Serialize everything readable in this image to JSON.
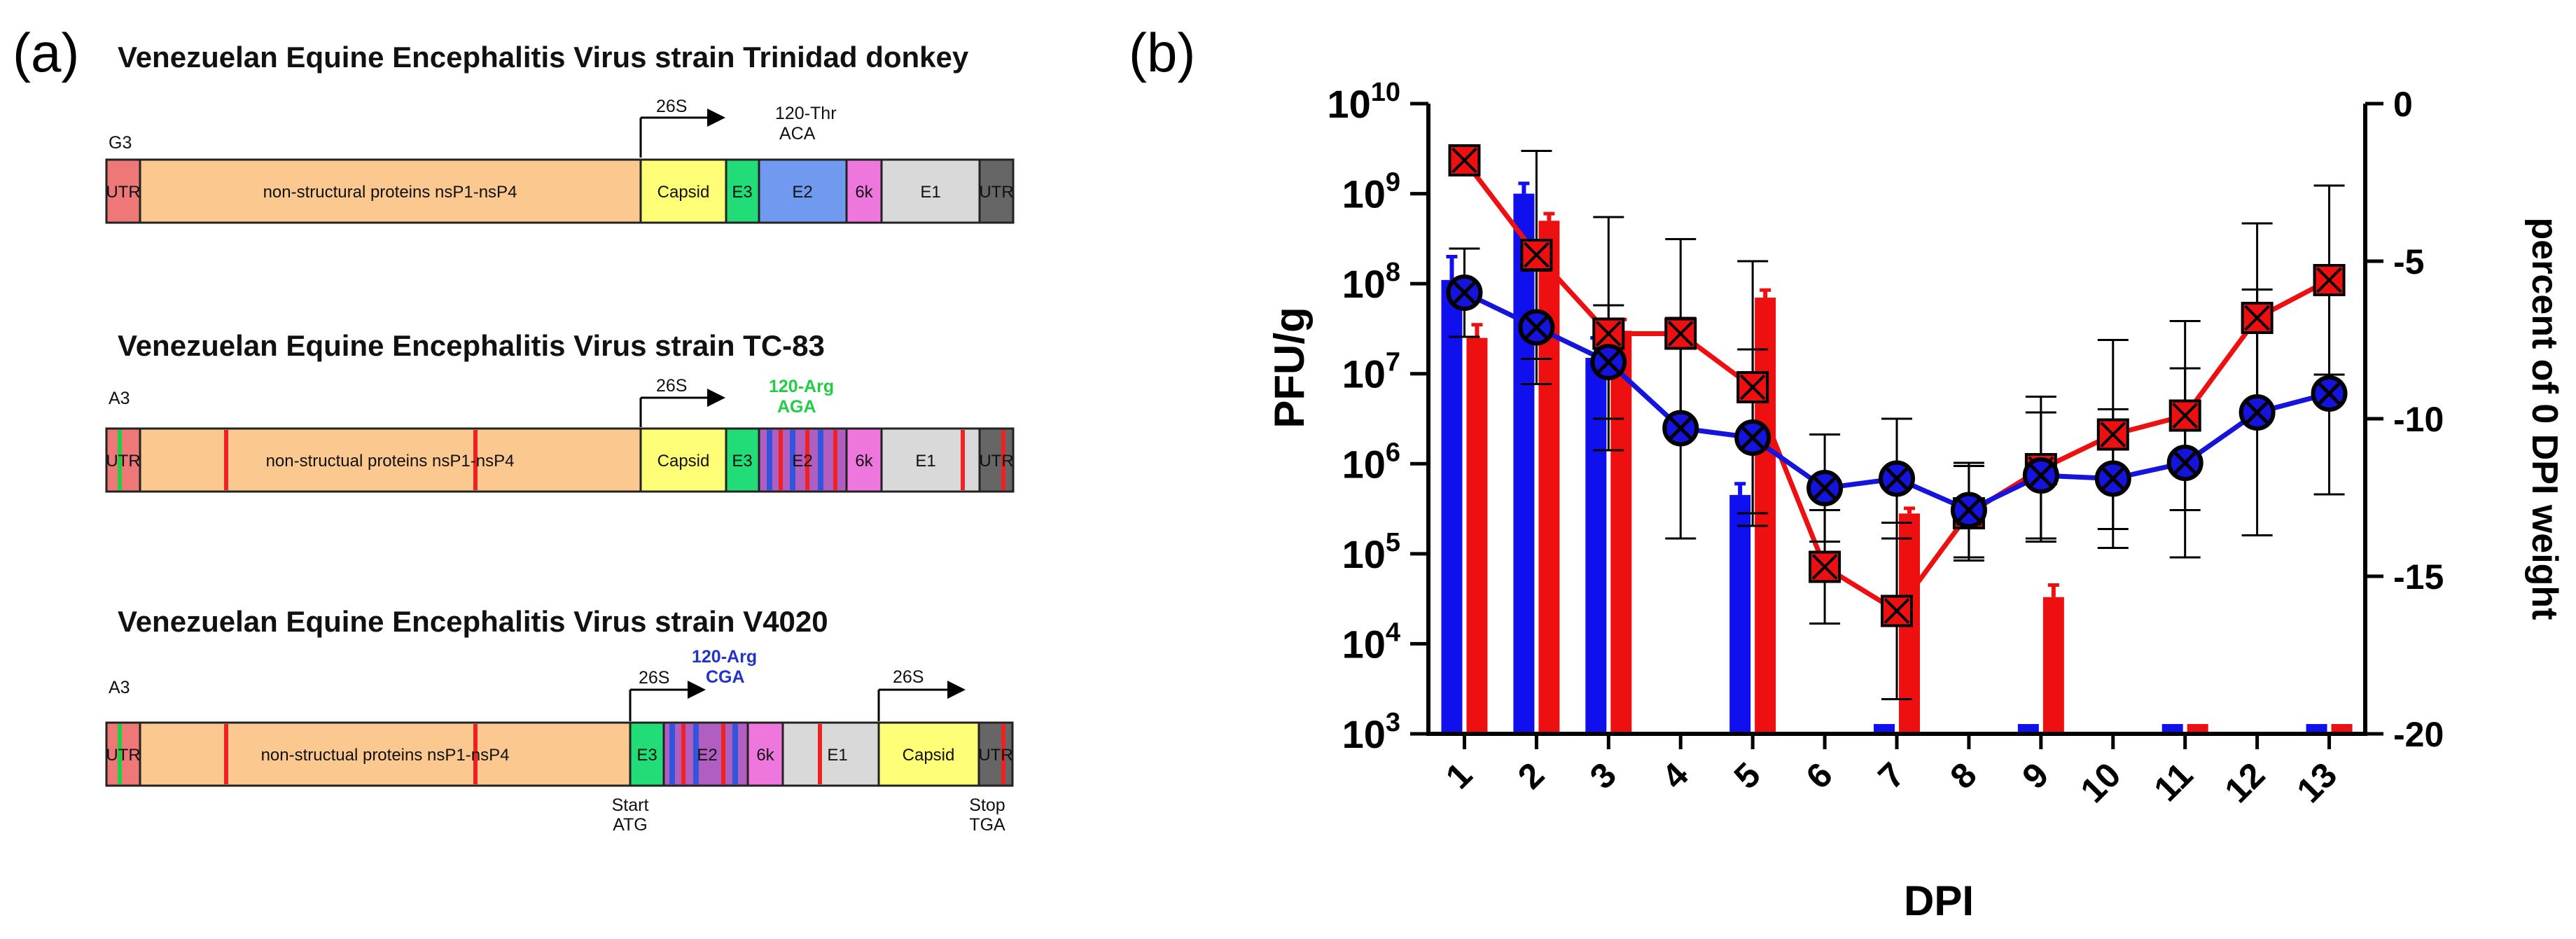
{
  "panel_a": {
    "label": "(a)",
    "strains": [
      {
        "title": "Venezuelan Equine Encephalitis Virus strain Trinidad donkey",
        "prefix": "G3",
        "promoter": "26S",
        "annotation": [
          "120-Thr",
          "ACA"
        ],
        "annotation_color": "#111111",
        "segments": [
          "UTR",
          "non-structural proteins nsP1-nsP4",
          "Capsid",
          "E3",
          "E2",
          "6k",
          "E1",
          "UTR"
        ]
      },
      {
        "title": "Venezuelan Equine Encephalitis Virus strain TC-83",
        "prefix": "A3",
        "promoter": "26S",
        "annotation": [
          "120-Arg",
          "AGA"
        ],
        "annotation_color": "#22cc44",
        "segments": [
          "UTR",
          "non-structual proteins nsP1-nsP4",
          "Capsid",
          "E3",
          "E2",
          "6k",
          "E1",
          "UTR"
        ]
      },
      {
        "title": "Venezuelan Equine Encephalitis Virus strain V4020",
        "prefix": "A3",
        "promoter": "26S",
        "promoter2": "26S",
        "annotation": [
          "120-Arg",
          "CGA"
        ],
        "annotation_color": "#2233cc",
        "segments": [
          "UTR",
          "non-structual proteins nsP1-nsP4",
          "E3",
          "E2",
          "6k",
          "E1",
          "Capsid",
          "UTR"
        ],
        "start": [
          "Start",
          "ATG"
        ],
        "stop": [
          "Stop",
          "TGA"
        ]
      }
    ],
    "colors": {
      "utr": "#ee7777",
      "utr_dark": "#555555",
      "nsp": "#fbc98f",
      "capsid": "#ffff77",
      "e3": "#22dd77",
      "e2": "#6f9af0",
      "k6": "#ee77dd",
      "e1": "#d9d9d9",
      "mutation": "#ee2222",
      "stripe_blue": "#3355dd"
    }
  },
  "panel_b": {
    "label": "(b)",
    "chart_data": {
      "type": "bar+line",
      "xlabel": "DPI",
      "ylabel": "PFU/g",
      "y2label": "percent of 0 DPI weight",
      "categories": [
        "1",
        "2",
        "3",
        "4",
        "5",
        "6",
        "7",
        "8",
        "9",
        "10",
        "11",
        "12",
        "13"
      ],
      "y_scale": "log",
      "ylim": [
        1000,
        10000000000
      ],
      "y_ticks": [
        "10^3",
        "10^4",
        "10^5",
        "10^6",
        "10^7",
        "10^8",
        "10^9",
        "10^10"
      ],
      "y2lim": [
        -20,
        0
      ],
      "y2_ticks": [
        "0",
        "-5",
        "-10",
        "-15",
        "-20"
      ],
      "limit_of_detection": 1000,
      "bars": [
        {
          "color": "#1010ee",
          "values": [
            110000000.0,
            1000000000.0,
            15000000.0,
            null,
            450000.0,
            null,
            1000,
            null,
            1000,
            null,
            1000,
            null,
            1000
          ],
          "errors_upper": [
            200000000.0,
            1300000000.0,
            25000000.0,
            null,
            600000.0,
            null,
            null,
            null,
            null,
            null,
            null,
            null,
            null
          ]
        },
        {
          "color": "#ee1010",
          "values": [
            25000000.0,
            500000000.0,
            30000000.0,
            null,
            70000000.0,
            null,
            280000.0,
            null,
            33000.0,
            null,
            1000,
            null,
            1000
          ],
          "errors_upper": [
            35000000.0,
            600000000.0,
            40000000.0,
            null,
            85000000.0,
            null,
            320000.0,
            null,
            45000.0,
            null,
            null,
            null,
            null
          ]
        }
      ],
      "lines": [
        {
          "color": "#ee1010",
          "marker": "square-x",
          "weight": [
            -1.8,
            -4.8,
            -7.3,
            -7.3,
            -9.0,
            -14.7,
            -16.1,
            -13.0,
            -11.6,
            -10.5,
            -9.9,
            -6.8,
            -5.6
          ],
          "error": [
            0,
            3.3,
            3.7,
            3.0,
            4.0,
            1.8,
            2.8,
            1.5,
            2.3,
            3.0,
            3.0,
            3.0,
            3.0
          ]
        },
        {
          "color": "#1414dd",
          "marker": "circle-x",
          "weight": [
            -6.0,
            -7.1,
            -8.2,
            -10.3,
            -10.6,
            -12.2,
            -11.9,
            -12.9,
            -11.8,
            -11.9,
            -11.4,
            -9.8,
            -9.2
          ],
          "error": [
            1.4,
            1.8,
            1.8,
            3.5,
            2.8,
            1.7,
            1.9,
            1.5,
            2.0,
            2.2,
            3.0,
            3.9,
            3.2
          ]
        }
      ]
    }
  }
}
